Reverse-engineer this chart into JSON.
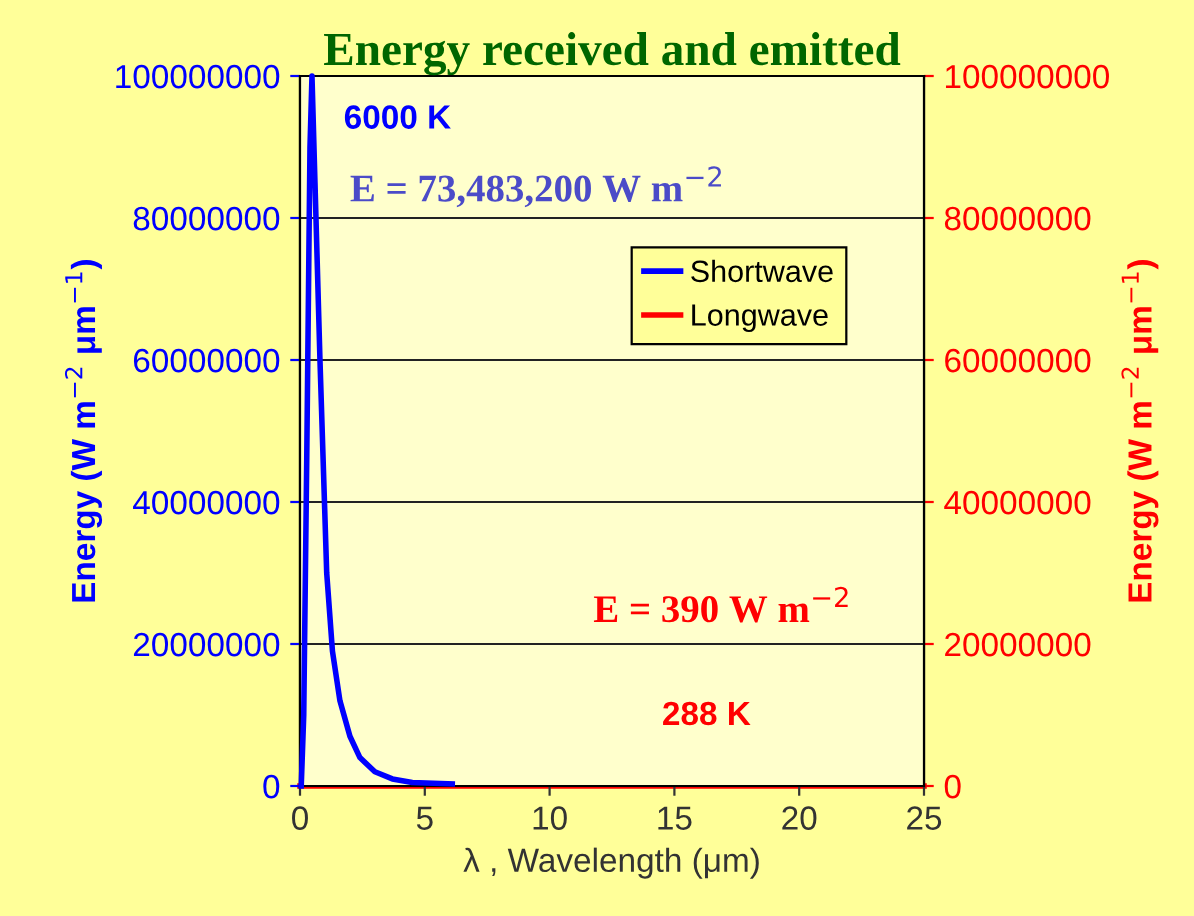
{
  "chart_data": {
    "type": "line",
    "title": "Energy received and emitted",
    "xlabel": "λ , Wavelength (μm)",
    "ylabel": "Energy (W m$^{−2}$ μm$^{−1}$)",
    "y2label": "Energy (W m$^{−2}$ μm$^{−1}$)",
    "series": [
      {
        "name": "Shortwave",
        "color": "#0000ff",
        "x": [
          0.05,
          0.15,
          0.27,
          0.4,
          0.48,
          0.6,
          0.8,
          1.07,
          1.3,
          1.6,
          2.0,
          2.4,
          3.0,
          3.7,
          4.5,
          6.1
        ],
        "values": [
          0,
          10000000,
          46000000,
          90000000,
          100000000,
          85000000,
          60000000,
          30000000,
          19000000,
          12000000,
          7000000,
          4000000,
          2000000,
          1000000,
          500000,
          300000
        ]
      },
      {
        "name": "Longwave",
        "color": "#ff0000",
        "axis": "y2",
        "x": [
          0,
          5,
          10,
          15,
          20,
          25
        ],
        "values": [
          0,
          0,
          0,
          0,
          0,
          0
        ]
      }
    ],
    "xlim": [
      0,
      25
    ],
    "xticks": [
      0,
      5,
      10,
      15,
      20,
      25
    ],
    "ylim": [
      0,
      100000000
    ],
    "yticks": [
      0,
      20000000,
      40000000,
      60000000,
      80000000,
      100000000
    ],
    "y2lim": [
      0,
      100000000
    ],
    "y2ticks": [
      0,
      20000000,
      40000000,
      60000000,
      80000000,
      100000000
    ],
    "annotations": [
      "6000 K",
      "E = 73,483,200 W m$^{−2}$",
      "E = 390 W m$^{−2}$",
      "288 K"
    ],
    "grid": "y",
    "legend": "top right",
    "marker": "none",
    "line_style": "solid"
  }
}
